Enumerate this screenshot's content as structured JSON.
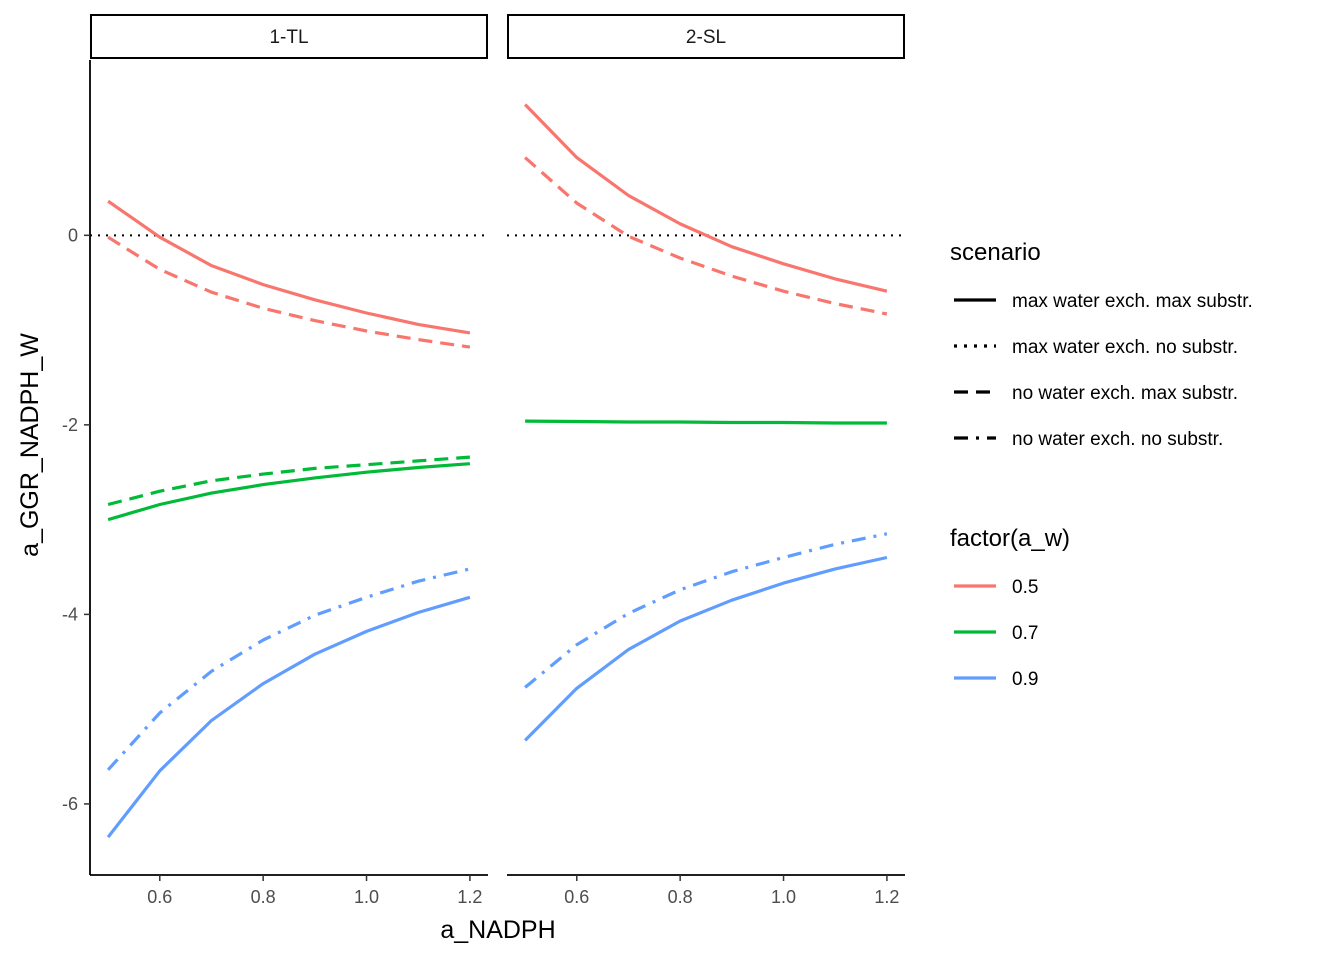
{
  "chart_data": {
    "type": "line",
    "xlabel": "a_NADPH",
    "ylabel": "a_GGR_NADPH_W",
    "xlim": [
      0.465,
      1.235
    ],
    "ylim": [
      -6.75,
      1.85
    ],
    "x_ticks": [
      0.6,
      0.8,
      1.0,
      1.2
    ],
    "x_tick_labels": [
      "0.6",
      "0.8",
      "1.0",
      "1.2"
    ],
    "y_ticks": [
      -6,
      -4,
      -2,
      0
    ],
    "y_tick_labels": [
      "-6",
      "-4",
      "-2",
      "0"
    ],
    "reference_line": {
      "y": 0,
      "linetype": "dotted",
      "color": "#000000"
    },
    "grid": false,
    "legend_placement": "right",
    "x": [
      0.5,
      0.6,
      0.7,
      0.8,
      0.9,
      1.0,
      1.1,
      1.2
    ],
    "scenarios": [
      {
        "label": "max water exch. max substr.",
        "linetype": "solid"
      },
      {
        "label": "max water exch. no substr.",
        "linetype": "dotted"
      },
      {
        "label": "no water exch. max substr.",
        "linetype": "dashed"
      },
      {
        "label": "no water exch. no substr.",
        "linetype": "dashdot"
      }
    ],
    "factor_levels": [
      {
        "label": "0.5",
        "color": "#F8766D"
      },
      {
        "label": "0.7",
        "color": "#00BA38"
      },
      {
        "label": "0.9",
        "color": "#619CFF"
      }
    ],
    "legend_titles": {
      "scenario": "scenario",
      "factor": "factor(a_w)"
    },
    "panels": [
      {
        "label": "1-TL",
        "series": [
          {
            "factor": "0.5",
            "linetype": "solid",
            "y": [
              0.36,
              -0.02,
              -0.32,
              -0.52,
              -0.68,
              -0.82,
              -0.94,
              -1.03
            ]
          },
          {
            "factor": "0.5",
            "linetype": "dashed",
            "y": [
              -0.02,
              -0.36,
              -0.6,
              -0.77,
              -0.9,
              -1.01,
              -1.1,
              -1.18
            ]
          },
          {
            "factor": "0.7",
            "linetype": "solid",
            "y": [
              -3.0,
              -2.84,
              -2.72,
              -2.63,
              -2.56,
              -2.5,
              -2.45,
              -2.41
            ]
          },
          {
            "factor": "0.7",
            "linetype": "dashed",
            "y": [
              -2.84,
              -2.7,
              -2.59,
              -2.52,
              -2.46,
              -2.42,
              -2.38,
              -2.34
            ]
          },
          {
            "factor": "0.9",
            "linetype": "solid",
            "y": [
              -6.35,
              -5.65,
              -5.12,
              -4.73,
              -4.42,
              -4.18,
              -3.98,
              -3.82
            ]
          },
          {
            "factor": "0.9",
            "linetype": "dashdot",
            "y": [
              -5.64,
              -5.04,
              -4.6,
              -4.27,
              -4.01,
              -3.82,
              -3.65,
              -3.52
            ]
          }
        ]
      },
      {
        "label": "2-SL",
        "series": [
          {
            "factor": "0.5",
            "linetype": "solid",
            "y": [
              1.38,
              0.82,
              0.42,
              0.12,
              -0.12,
              -0.3,
              -0.46,
              -0.59
            ]
          },
          {
            "factor": "0.5",
            "linetype": "dashed",
            "y": [
              0.82,
              0.34,
              -0.01,
              -0.24,
              -0.43,
              -0.59,
              -0.72,
              -0.83
            ]
          },
          {
            "factor": "0.7",
            "linetype": "solid",
            "y": [
              -1.96,
              -1.965,
              -1.97,
              -1.97,
              -1.975,
              -1.975,
              -1.98,
              -1.98
            ]
          },
          {
            "factor": "0.9",
            "linetype": "solid",
            "y": [
              -5.33,
              -4.78,
              -4.37,
              -4.07,
              -3.85,
              -3.67,
              -3.52,
              -3.4
            ]
          },
          {
            "factor": "0.9",
            "linetype": "dashdot",
            "y": [
              -4.77,
              -4.32,
              -3.99,
              -3.74,
              -3.55,
              -3.4,
              -3.26,
              -3.15
            ]
          }
        ]
      }
    ]
  }
}
